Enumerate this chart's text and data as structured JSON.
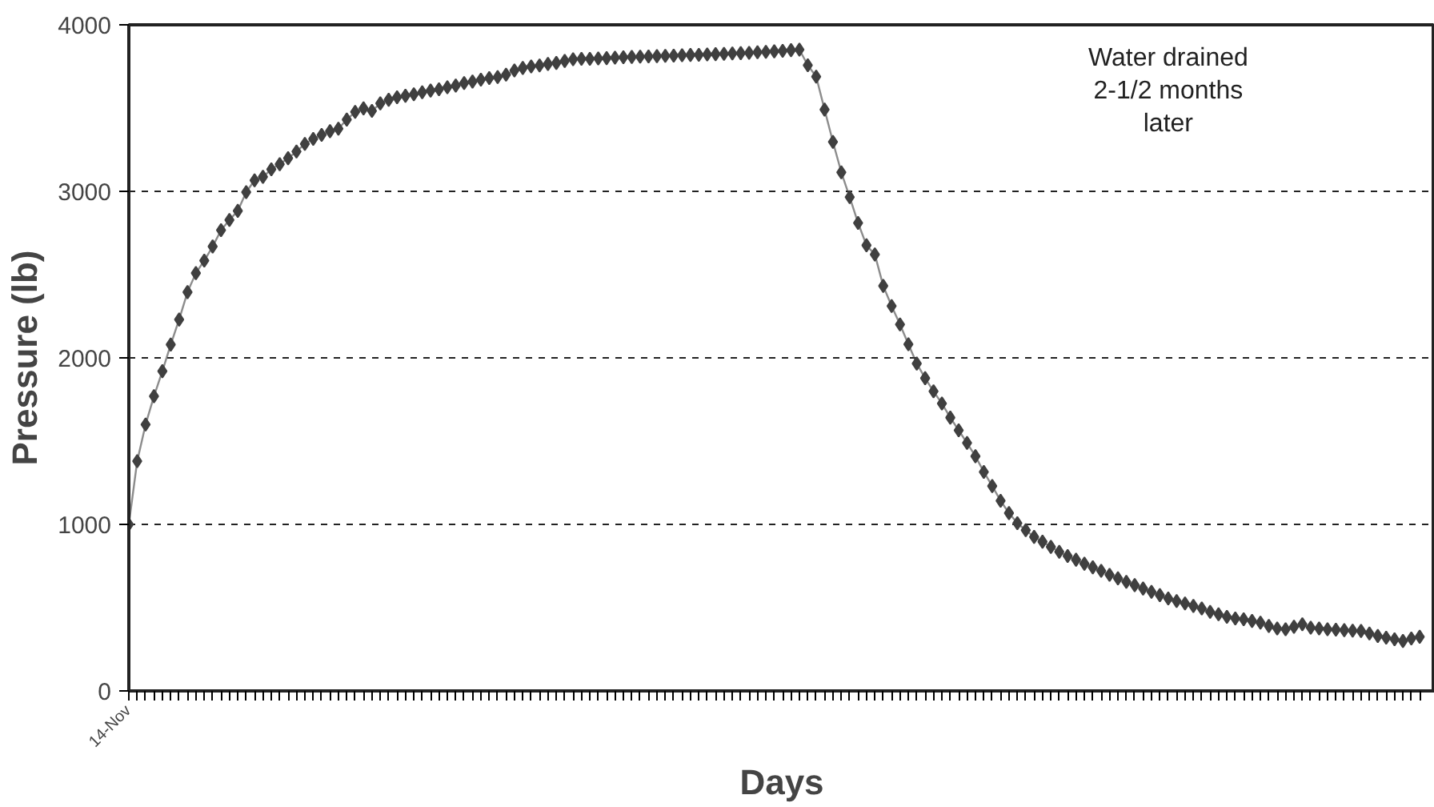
{
  "chart_data": {
    "type": "line",
    "xlabel": "Days",
    "ylabel": "Pressure (lb)",
    "annotations": [
      "Water drained\n2-1/2 months\nlater"
    ],
    "categories": [
      "14-Nov",
      null,
      null,
      null,
      null,
      null,
      null,
      null,
      null,
      null,
      null,
      null,
      null,
      null,
      null,
      null,
      null,
      null,
      null,
      null,
      null,
      null,
      null,
      null,
      null,
      null,
      null,
      null,
      null,
      null,
      null,
      null,
      null,
      null,
      null,
      null,
      null,
      null,
      null,
      null,
      null,
      null,
      null,
      null,
      null,
      null,
      null,
      null,
      null,
      null,
      null,
      null,
      null,
      null,
      null,
      null,
      null,
      null,
      null,
      null,
      null,
      null,
      null,
      null,
      null,
      null,
      null,
      null,
      null,
      null,
      null,
      null,
      null,
      null,
      null,
      null,
      null,
      null,
      null,
      null,
      null,
      null,
      null,
      null,
      null,
      null,
      null,
      null,
      null,
      null,
      null,
      null,
      null,
      null,
      null,
      null,
      null,
      null,
      null,
      null,
      null,
      null,
      null,
      null,
      null,
      null,
      null,
      null,
      null,
      null,
      null,
      null,
      null,
      null,
      null,
      null,
      null,
      null,
      null,
      null,
      null,
      null,
      null,
      null,
      null,
      null,
      null,
      null,
      null,
      null,
      null,
      null,
      null,
      null,
      null,
      null,
      null,
      null,
      null,
      null,
      null,
      null,
      null,
      null,
      null,
      null,
      null,
      null,
      null,
      null,
      null,
      null,
      null,
      null,
      null
    ],
    "series": [
      {
        "color": "#404040",
        "values": [
          1000,
          1380,
          1600,
          1770,
          1920,
          2080,
          2230,
          2395,
          2509,
          2584,
          2669,
          2767,
          2828,
          2883,
          2995,
          3066,
          3087,
          3132,
          3163,
          3199,
          3239,
          3285,
          3315,
          3339,
          3361,
          3376,
          3431,
          3477,
          3498,
          3483,
          3528,
          3550,
          3565,
          3574,
          3583,
          3595,
          3605,
          3613,
          3625,
          3635,
          3650,
          3659,
          3671,
          3680,
          3686,
          3701,
          3726,
          3741,
          3750,
          3756,
          3765,
          3771,
          3783,
          3793,
          3796,
          3796,
          3798,
          3800,
          3803,
          3805,
          3807,
          3809,
          3810,
          3812,
          3814,
          3815,
          3817,
          3819,
          3820,
          3822,
          3824,
          3826,
          3828,
          3830,
          3832,
          3835,
          3838,
          3841,
          3844,
          3848,
          3851,
          3757,
          3689,
          3491,
          3297,
          3114,
          2965,
          2810,
          2676,
          2621,
          2432,
          2311,
          2201,
          2082,
          1966,
          1878,
          1799,
          1726,
          1641,
          1565,
          1489,
          1409,
          1315,
          1230,
          1142,
          1068,
          1007,
          965,
          925,
          896,
          865,
          835,
          810,
          788,
          764,
          742,
          721,
          697,
          676,
          655,
          635,
          615,
          595,
          575,
          555,
          540,
          525,
          510,
          495,
          475,
          460,
          445,
          435,
          430,
          420,
          410,
          390,
          375,
          370,
          385,
          400,
          380,
          375,
          370,
          368,
          365,
          362,
          360,
          345,
          330,
          320,
          310,
          300,
          315,
          325
        ]
      }
    ],
    "ylim": [
      0,
      4000
    ],
    "yticks": [
      0,
      1000,
      2000,
      3000,
      4000
    ],
    "grid": "y",
    "marker": "diamond",
    "line_style": "solid"
  }
}
